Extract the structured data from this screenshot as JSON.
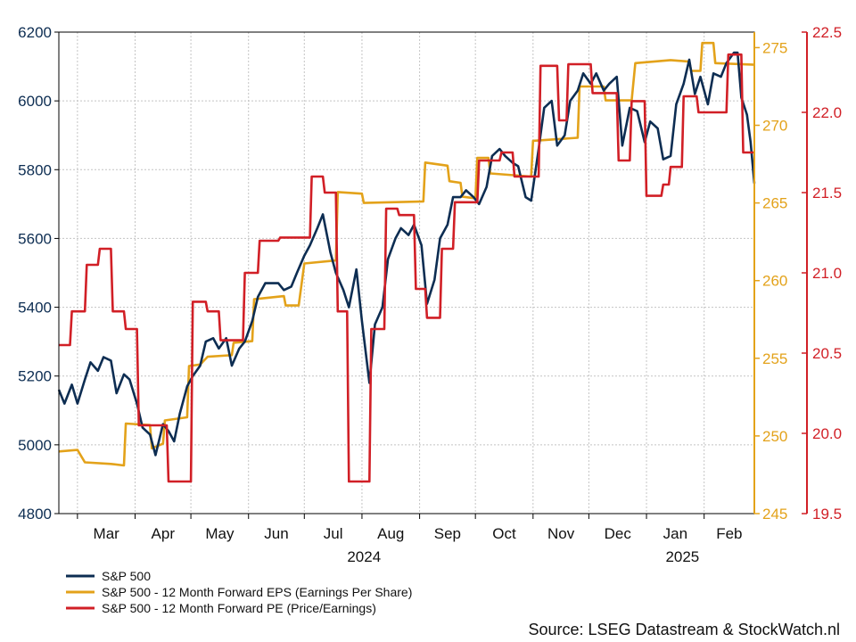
{
  "chart_data": {
    "type": "line",
    "title": "",
    "x_axis": {
      "months": [
        "Mar",
        "Apr",
        "May",
        "Jun",
        "Jul",
        "Aug",
        "Sep",
        "Oct",
        "Nov",
        "Dec",
        "Jan",
        "Feb"
      ],
      "years": [
        "2024",
        "2025"
      ],
      "range": [
        "2024-02-20",
        "2025-02-28"
      ]
    },
    "y_axes": {
      "left": {
        "label": "",
        "range": [
          4800,
          6200
        ],
        "ticks": [
          4800,
          5000,
          5200,
          5400,
          5600,
          5800,
          6000,
          6200
        ],
        "color": "#0d2d52"
      },
      "right_eps": {
        "label": "",
        "range": [
          245,
          276
        ],
        "ticks": [
          245,
          250,
          255,
          260,
          265,
          270,
          275
        ],
        "color": "#e3a21a"
      },
      "right_pe": {
        "label": "",
        "range": [
          19.5,
          22.5
        ],
        "ticks": [
          19.5,
          20.0,
          20.5,
          21.0,
          21.5,
          22.0,
          22.5
        ],
        "tick_labels": [
          "19.5",
          "20.0",
          "20.5",
          "21.0",
          "21.5",
          "22.0",
          "22.5"
        ],
        "color": "#d11f26"
      }
    },
    "grid": true,
    "legend": {
      "placement": "bottom-left"
    },
    "series": [
      {
        "name": "S&P 500",
        "axis": "left",
        "color": "#0d2d52",
        "points": [
          [
            "2024-02-20",
            5160
          ],
          [
            "2024-02-23",
            5120
          ],
          [
            "2024-02-27",
            5175
          ],
          [
            "2024-03-01",
            5120
          ],
          [
            "2024-03-05",
            5190
          ],
          [
            "2024-03-08",
            5240
          ],
          [
            "2024-03-12",
            5215
          ],
          [
            "2024-03-15",
            5255
          ],
          [
            "2024-03-19",
            5245
          ],
          [
            "2024-03-22",
            5150
          ],
          [
            "2024-03-26",
            5205
          ],
          [
            "2024-03-29",
            5190
          ],
          [
            "2024-04-02",
            5120
          ],
          [
            "2024-04-05",
            5050
          ],
          [
            "2024-04-09",
            5030
          ],
          [
            "2024-04-12",
            4970
          ],
          [
            "2024-04-16",
            5060
          ],
          [
            "2024-04-19",
            5040
          ],
          [
            "2024-04-22",
            5010
          ],
          [
            "2024-04-25",
            5090
          ],
          [
            "2024-04-29",
            5170
          ],
          [
            "2024-05-02",
            5200
          ],
          [
            "2024-05-06",
            5230
          ],
          [
            "2024-05-09",
            5300
          ],
          [
            "2024-05-13",
            5310
          ],
          [
            "2024-05-16",
            5280
          ],
          [
            "2024-05-20",
            5310
          ],
          [
            "2024-05-23",
            5230
          ],
          [
            "2024-05-27",
            5280
          ],
          [
            "2024-05-30",
            5300
          ],
          [
            "2024-06-03",
            5360
          ],
          [
            "2024-06-06",
            5430
          ],
          [
            "2024-06-10",
            5470
          ],
          [
            "2024-06-13",
            5470
          ],
          [
            "2024-06-17",
            5470
          ],
          [
            "2024-06-20",
            5450
          ],
          [
            "2024-06-24",
            5460
          ],
          [
            "2024-06-27",
            5500
          ],
          [
            "2024-07-01",
            5550
          ],
          [
            "2024-07-04",
            5580
          ],
          [
            "2024-07-08",
            5630
          ],
          [
            "2024-07-11",
            5670
          ],
          [
            "2024-07-15",
            5560
          ],
          [
            "2024-07-18",
            5500
          ],
          [
            "2024-07-22",
            5450
          ],
          [
            "2024-07-25",
            5400
          ],
          [
            "2024-07-29",
            5510
          ],
          [
            "2024-08-01",
            5360
          ],
          [
            "2024-08-05",
            5180
          ],
          [
            "2024-08-08",
            5350
          ],
          [
            "2024-08-12",
            5400
          ],
          [
            "2024-08-15",
            5540
          ],
          [
            "2024-08-19",
            5600
          ],
          [
            "2024-08-22",
            5630
          ],
          [
            "2024-08-26",
            5610
          ],
          [
            "2024-08-29",
            5640
          ],
          [
            "2024-09-02",
            5580
          ],
          [
            "2024-09-05",
            5410
          ],
          [
            "2024-09-09",
            5480
          ],
          [
            "2024-09-12",
            5600
          ],
          [
            "2024-09-16",
            5640
          ],
          [
            "2024-09-19",
            5720
          ],
          [
            "2024-09-23",
            5720
          ],
          [
            "2024-09-26",
            5740
          ],
          [
            "2024-09-30",
            5720
          ],
          [
            "2024-10-03",
            5700
          ],
          [
            "2024-10-07",
            5750
          ],
          [
            "2024-10-10",
            5840
          ],
          [
            "2024-10-14",
            5860
          ],
          [
            "2024-10-17",
            5840
          ],
          [
            "2024-10-21",
            5820
          ],
          [
            "2024-10-24",
            5810
          ],
          [
            "2024-10-28",
            5720
          ],
          [
            "2024-10-31",
            5710
          ],
          [
            "2024-11-04",
            5860
          ],
          [
            "2024-11-07",
            5980
          ],
          [
            "2024-11-11",
            6000
          ],
          [
            "2024-11-14",
            5870
          ],
          [
            "2024-11-18",
            5900
          ],
          [
            "2024-11-21",
            6000
          ],
          [
            "2024-11-25",
            6030
          ],
          [
            "2024-11-28",
            6080
          ],
          [
            "2024-12-02",
            6050
          ],
          [
            "2024-12-05",
            6080
          ],
          [
            "2024-12-09",
            6030
          ],
          [
            "2024-12-12",
            6050
          ],
          [
            "2024-12-16",
            6070
          ],
          [
            "2024-12-19",
            5870
          ],
          [
            "2024-12-23",
            5980
          ],
          [
            "2024-12-27",
            5970
          ],
          [
            "2024-12-31",
            5880
          ],
          [
            "2025-01-03",
            5940
          ],
          [
            "2025-01-07",
            5920
          ],
          [
            "2025-01-10",
            5830
          ],
          [
            "2025-01-14",
            5840
          ],
          [
            "2025-01-17",
            5990
          ],
          [
            "2025-01-21",
            6050
          ],
          [
            "2025-01-24",
            6120
          ],
          [
            "2025-01-27",
            6020
          ],
          [
            "2025-01-30",
            6070
          ],
          [
            "2025-02-03",
            5990
          ],
          [
            "2025-02-06",
            6080
          ],
          [
            "2025-02-10",
            6070
          ],
          [
            "2025-02-13",
            6110
          ],
          [
            "2025-02-17",
            6140
          ],
          [
            "2025-02-19",
            6140
          ],
          [
            "2025-02-21",
            6010
          ],
          [
            "2025-02-24",
            5960
          ],
          [
            "2025-02-26",
            5880
          ],
          [
            "2025-02-28",
            5760
          ]
        ]
      },
      {
        "name": "S&P 500 - 12 Month Forward EPS (Earnings Per Share)",
        "axis": "right_eps",
        "color": "#e3a21a",
        "points": [
          [
            "2024-02-20",
            249.0
          ],
          [
            "2024-03-01",
            249.1
          ],
          [
            "2024-03-05",
            248.3
          ],
          [
            "2024-03-19",
            248.2
          ],
          [
            "2024-03-26",
            248.1
          ],
          [
            "2024-03-27",
            250.8
          ],
          [
            "2024-04-09",
            250.7
          ],
          [
            "2024-04-10",
            249.2
          ],
          [
            "2024-04-16",
            249.5
          ],
          [
            "2024-04-17",
            251.0
          ],
          [
            "2024-04-29",
            251.2
          ],
          [
            "2024-04-30",
            254.5
          ],
          [
            "2024-05-06",
            254.6
          ],
          [
            "2024-05-10",
            255.1
          ],
          [
            "2024-05-23",
            255.2
          ],
          [
            "2024-05-24",
            256.0
          ],
          [
            "2024-06-03",
            256.1
          ],
          [
            "2024-06-04",
            258.8
          ],
          [
            "2024-06-20",
            259.0
          ],
          [
            "2024-06-21",
            258.4
          ],
          [
            "2024-06-28",
            258.4
          ],
          [
            "2024-07-01",
            261.1
          ],
          [
            "2024-07-18",
            261.3
          ],
          [
            "2024-07-19",
            265.7
          ],
          [
            "2024-08-01",
            265.6
          ],
          [
            "2024-08-02",
            265.0
          ],
          [
            "2024-09-03",
            265.1
          ],
          [
            "2024-09-04",
            267.6
          ],
          [
            "2024-09-16",
            267.4
          ],
          [
            "2024-09-17",
            266.4
          ],
          [
            "2024-09-23",
            266.3
          ],
          [
            "2024-09-24",
            265.4
          ],
          [
            "2024-10-01",
            265.3
          ],
          [
            "2024-10-02",
            267.9
          ],
          [
            "2024-10-08",
            267.9
          ],
          [
            "2024-10-09",
            266.9
          ],
          [
            "2024-10-31",
            266.7
          ],
          [
            "2024-11-01",
            269.0
          ],
          [
            "2024-11-25",
            269.2
          ],
          [
            "2024-11-26",
            272.5
          ],
          [
            "2024-12-09",
            272.5
          ],
          [
            "2024-12-10",
            271.6
          ],
          [
            "2024-12-24",
            271.6
          ],
          [
            "2024-12-26",
            274.0
          ],
          [
            "2025-01-14",
            274.2
          ],
          [
            "2025-01-24",
            274.1
          ],
          [
            "2025-01-25",
            273.5
          ],
          [
            "2025-01-30",
            273.5
          ],
          [
            "2025-01-31",
            275.3
          ],
          [
            "2025-02-06",
            275.3
          ],
          [
            "2025-02-07",
            274.0
          ],
          [
            "2025-02-28",
            273.9
          ]
        ]
      },
      {
        "name": "S&P 500 - 12 Month Forward PE (Price/Earnings)",
        "axis": "right_pe",
        "color": "#d11f26",
        "points": [
          [
            "2024-02-20",
            20.55
          ],
          [
            "2024-02-26",
            20.55
          ],
          [
            "2024-02-27",
            20.76
          ],
          [
            "2024-03-05",
            20.76
          ],
          [
            "2024-03-06",
            21.05
          ],
          [
            "2024-03-12",
            21.05
          ],
          [
            "2024-03-13",
            21.15
          ],
          [
            "2024-03-19",
            21.15
          ],
          [
            "2024-03-20",
            20.76
          ],
          [
            "2024-03-26",
            20.76
          ],
          [
            "2024-03-27",
            20.65
          ],
          [
            "2024-04-02",
            20.65
          ],
          [
            "2024-04-03",
            20.05
          ],
          [
            "2024-04-18",
            20.05
          ],
          [
            "2024-04-19",
            19.7
          ],
          [
            "2024-05-01",
            19.7
          ],
          [
            "2024-05-02",
            20.82
          ],
          [
            "2024-05-09",
            20.82
          ],
          [
            "2024-05-10",
            20.76
          ],
          [
            "2024-05-16",
            20.76
          ],
          [
            "2024-05-17",
            20.58
          ],
          [
            "2024-05-29",
            20.58
          ],
          [
            "2024-05-30",
            21.0
          ],
          [
            "2024-06-06",
            21.0
          ],
          [
            "2024-06-07",
            21.2
          ],
          [
            "2024-06-17",
            21.2
          ],
          [
            "2024-06-18",
            21.22
          ],
          [
            "2024-07-04",
            21.22
          ],
          [
            "2024-07-05",
            21.6
          ],
          [
            "2024-07-11",
            21.6
          ],
          [
            "2024-07-12",
            21.5
          ],
          [
            "2024-07-18",
            21.5
          ],
          [
            "2024-07-19",
            20.76
          ],
          [
            "2024-07-24",
            20.76
          ],
          [
            "2024-07-25",
            19.7
          ],
          [
            "2024-08-05",
            19.7
          ],
          [
            "2024-08-06",
            20.65
          ],
          [
            "2024-08-13",
            20.65
          ],
          [
            "2024-08-14",
            21.4
          ],
          [
            "2024-08-20",
            21.4
          ],
          [
            "2024-08-21",
            21.36
          ],
          [
            "2024-08-29",
            21.36
          ],
          [
            "2024-08-30",
            20.9
          ],
          [
            "2024-09-04",
            20.9
          ],
          [
            "2024-09-05",
            20.72
          ],
          [
            "2024-09-12",
            20.72
          ],
          [
            "2024-09-13",
            21.15
          ],
          [
            "2024-09-19",
            21.15
          ],
          [
            "2024-09-20",
            21.44
          ],
          [
            "2024-10-02",
            21.44
          ],
          [
            "2024-10-03",
            21.7
          ],
          [
            "2024-10-14",
            21.7
          ],
          [
            "2024-10-15",
            21.75
          ],
          [
            "2024-10-21",
            21.75
          ],
          [
            "2024-10-22",
            21.6
          ],
          [
            "2024-11-04",
            21.6
          ],
          [
            "2024-11-05",
            22.29
          ],
          [
            "2024-11-14",
            22.29
          ],
          [
            "2024-11-15",
            21.95
          ],
          [
            "2024-11-19",
            21.95
          ],
          [
            "2024-11-20",
            22.3
          ],
          [
            "2024-12-02",
            22.3
          ],
          [
            "2024-12-03",
            22.12
          ],
          [
            "2024-12-16",
            22.12
          ],
          [
            "2024-12-17",
            21.7
          ],
          [
            "2024-12-23",
            21.7
          ],
          [
            "2024-12-24",
            22.07
          ],
          [
            "2024-12-31",
            22.07
          ],
          [
            "2025-01-01",
            21.48
          ],
          [
            "2025-01-09",
            21.48
          ],
          [
            "2025-01-10",
            21.55
          ],
          [
            "2025-01-13",
            21.55
          ],
          [
            "2025-01-14",
            21.66
          ],
          [
            "2025-01-20",
            21.66
          ],
          [
            "2025-01-21",
            22.1
          ],
          [
            "2025-01-28",
            22.1
          ],
          [
            "2025-01-29",
            22.0
          ],
          [
            "2025-02-13",
            22.0
          ],
          [
            "2025-02-14",
            22.36
          ],
          [
            "2025-02-21",
            22.36
          ],
          [
            "2025-02-22",
            21.75
          ],
          [
            "2025-02-28",
            21.75
          ]
        ]
      }
    ],
    "source": "Source: LSEG Datastream & StockWatch.nl"
  }
}
